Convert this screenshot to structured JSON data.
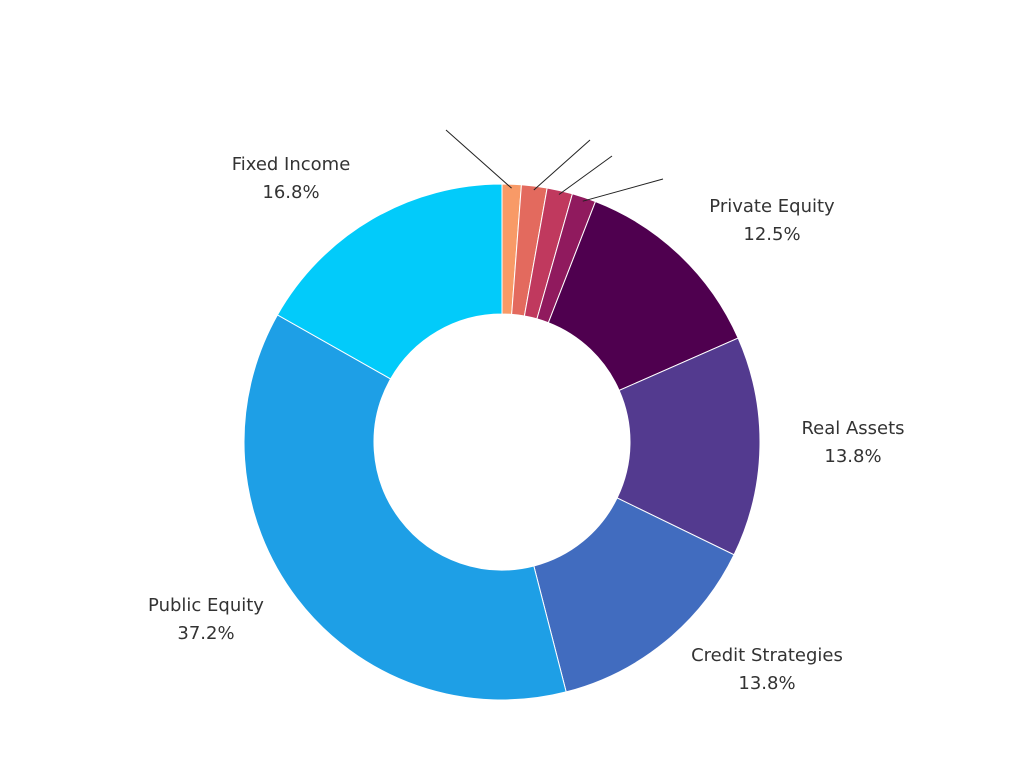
{
  "chart_data": {
    "type": "pie",
    "variant": "donut",
    "legend": "none",
    "slices": [
      {
        "name": "",
        "value": 1.2,
        "display": "",
        "color": "#F89A67"
      },
      {
        "name": "",
        "value": 1.6,
        "display": "",
        "color": "#E36A5E"
      },
      {
        "name": "",
        "value": 1.6,
        "display": "",
        "color": "#C0395E"
      },
      {
        "name": "",
        "value": 1.5,
        "display": "",
        "color": "#901A5E"
      },
      {
        "name": "Private Equity",
        "value": 12.5,
        "display": "12.5%",
        "color": "#4F004F"
      },
      {
        "name": "Real Assets",
        "value": 13.8,
        "display": "13.8%",
        "color": "#533A8F"
      },
      {
        "name": "Credit Strategies",
        "value": 13.8,
        "display": "13.8%",
        "color": "#416CBF"
      },
      {
        "name": "Public Equity",
        "value": 37.2,
        "display": "37.2%",
        "color": "#1E9FE6"
      },
      {
        "name": "Fixed Income",
        "value": 16.8,
        "display": "16.8%",
        "color": "#02CBFA"
      }
    ]
  }
}
